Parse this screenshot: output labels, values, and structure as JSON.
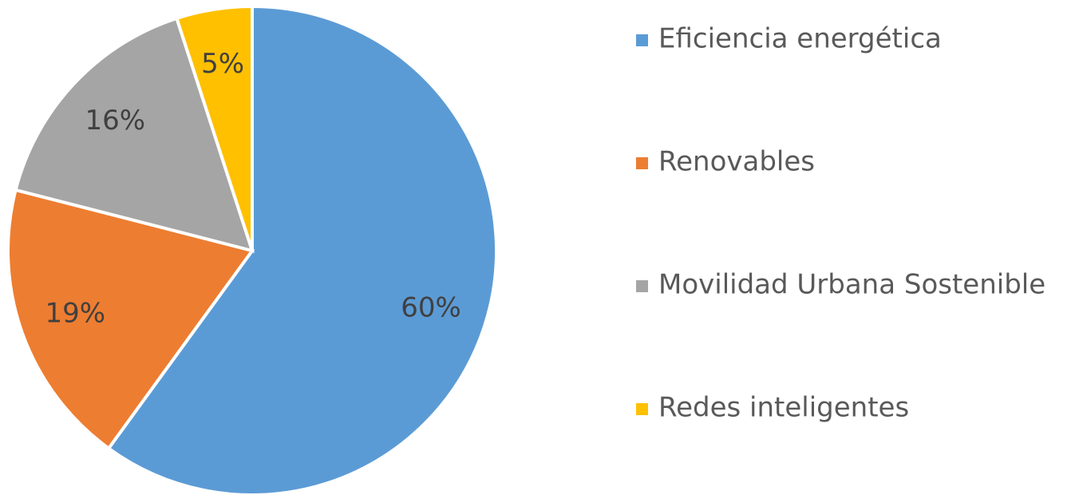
{
  "chart_data": {
    "type": "pie",
    "categories": [
      "Eficiencia energética",
      "Renovables",
      "Movilidad Urbana Sostenible",
      "Redes inteligentes"
    ],
    "values": [
      60,
      19,
      16,
      5
    ],
    "value_labels": [
      "60%",
      "19%",
      "16%",
      "5%"
    ],
    "colors": [
      "#5b9bd5",
      "#ed7d31",
      "#a5a5a5",
      "#ffc000"
    ],
    "legend": "right"
  }
}
